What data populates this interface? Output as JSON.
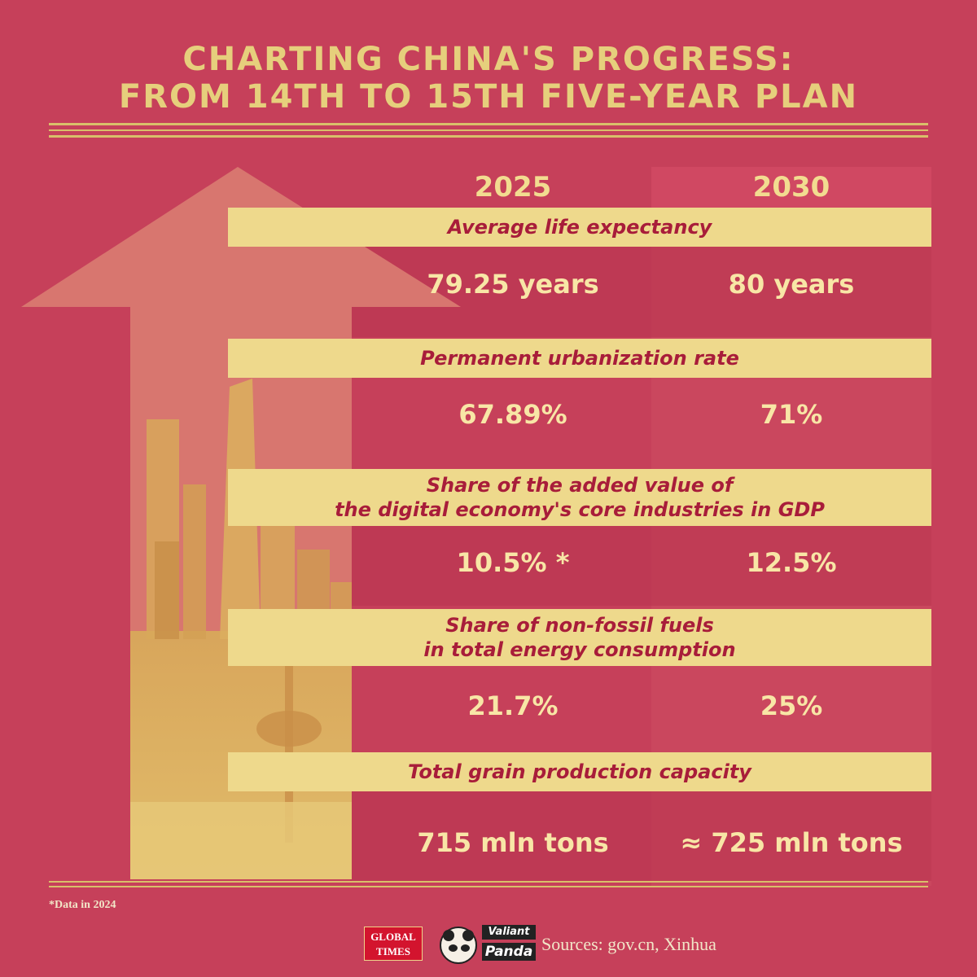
{
  "title": {
    "line1": "CHARTING CHINA'S PROGRESS:",
    "line2": "FROM 14TH TO 15TH FIVE-YEAR PLAN"
  },
  "years": {
    "y1": "2025",
    "y2": "2030"
  },
  "rows": [
    {
      "label_lines": [
        "Average life expectancy"
      ],
      "v2025": "79.25 years",
      "v2030": "80 years"
    },
    {
      "label_lines": [
        "Permanent urbanization rate"
      ],
      "v2025": "67.89%",
      "v2030": "71%"
    },
    {
      "label_lines": [
        "Share of the added value of",
        "the digital economy's core industries in GDP"
      ],
      "v2025": "10.5% *",
      "v2030": "12.5%"
    },
    {
      "label_lines": [
        "Share of non-fossil fuels",
        "in total energy consumption"
      ],
      "v2025": "21.7%",
      "v2030": "25%"
    },
    {
      "label_lines": [
        "Total grain production capacity"
      ],
      "v2025": "715 mln tons",
      "v2030": "≈ 725 mln tons"
    }
  ],
  "footnote": "*Data in 2024",
  "logos": {
    "global_times": [
      "GLOBAL",
      "TIMES"
    ],
    "valiant_panda": [
      "Valiant",
      "Panda"
    ]
  },
  "sources": "Sources: gov.cn, Xinhua",
  "colors": {
    "background": "#c6405a",
    "gold": "#e6cf7c",
    "band": "#eed98c",
    "band_text": "#a81d3a",
    "arrow": "#d8766f"
  },
  "icons": [
    "upward-arrow-icon",
    "city-skyline-illustration"
  ]
}
